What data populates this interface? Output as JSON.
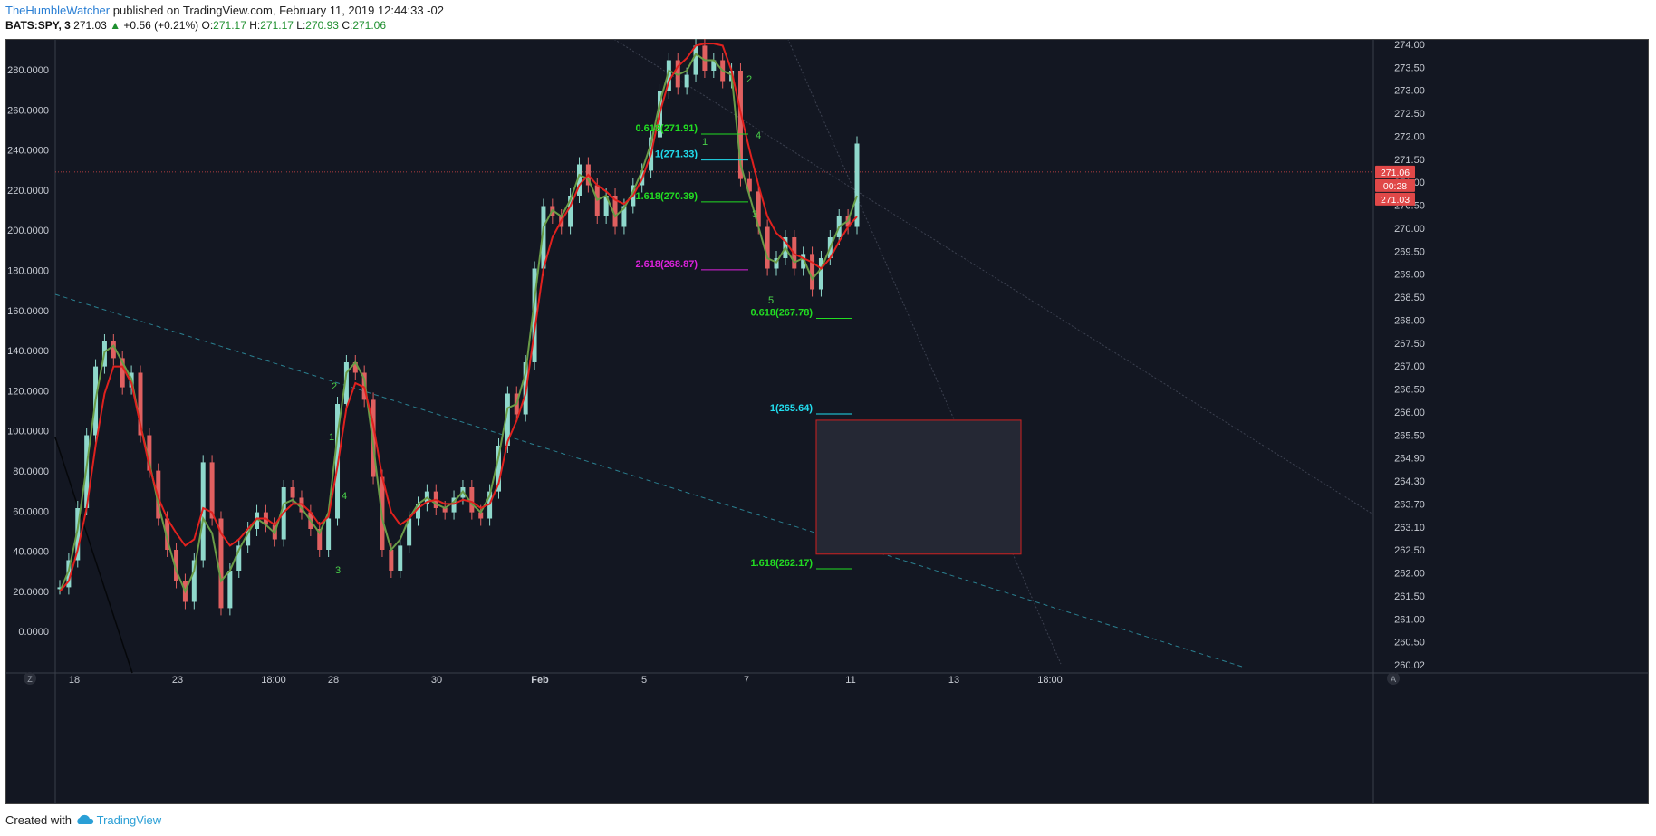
{
  "header": {
    "author": "TheHumbleWatcher",
    "published": "published on TradingView.com, February 11, 2019 12:44:33 -02",
    "symbol": "BATS:SPY, 3",
    "last": "271.03",
    "change": "+0.56 (+0.21%)",
    "o_label": "O:",
    "o_value": "271.17",
    "h_label": "H:",
    "h_value": "271.17",
    "l_label": "L:",
    "l_value": "270.93",
    "c_label": "C:",
    "c_value": "271.06"
  },
  "footer": {
    "created_with": "Created with",
    "brand": "TradingView"
  },
  "colors": {
    "background": "#131722",
    "up_candle": "#8fd8cc",
    "down_candle": "#e06060",
    "ma_fast": "#6a9c47",
    "ma_slow": "#e0211e",
    "fib_green": "#22dd22",
    "fib_cyan": "#22ddee",
    "fib_magenta": "#dd22dd",
    "wave_green": "#4ad04a",
    "price_tag": "#e04848",
    "box_border": "#d02020",
    "dashed_line": "#2a7f8f"
  },
  "chart_data": {
    "type": "line",
    "symbol": "BATS:SPY",
    "interval": "3",
    "x_ticks": [
      "18",
      "23",
      "18:00",
      "28",
      "30",
      "Feb",
      "5",
      "7",
      "11",
      "13",
      "18:00"
    ],
    "left_axis_ticks": [
      "280.0000",
      "260.0000",
      "240.0000",
      "220.0000",
      "200.0000",
      "180.0000",
      "160.0000",
      "140.0000",
      "120.0000",
      "100.0000",
      "80.0000",
      "60.0000",
      "40.0000",
      "20.0000",
      "0.0000"
    ],
    "right_axis_ticks": [
      "274.00",
      "273.50",
      "273.00",
      "272.50",
      "272.00",
      "271.50",
      "271.00",
      "270.50",
      "270.00",
      "269.50",
      "269.00",
      "268.50",
      "268.00",
      "267.50",
      "267.00",
      "266.50",
      "266.00",
      "265.50",
      "264.90",
      "264.30",
      "263.70",
      "263.10",
      "262.50",
      "262.00",
      "261.50",
      "261.00",
      "260.50",
      "260.02"
    ],
    "left_range": [
      0,
      280
    ],
    "right_range": [
      260.02,
      274.0
    ],
    "grid": false,
    "price_tags": [
      "271.06",
      "00:28",
      "271.03"
    ],
    "series": [
      {
        "name": "",
        "values": [
          22,
          35,
          60,
          95,
          128,
          140,
          132,
          118,
          125,
          95,
          78,
          55,
          40,
          25,
          15,
          35,
          82,
          55,
          12,
          30,
          42,
          50,
          58,
          52,
          45,
          70,
          65,
          58,
          50,
          40,
          55,
          110,
          130,
          125,
          112,
          75,
          40,
          30,
          42,
          55,
          62,
          68,
          60,
          58,
          65,
          70,
          58,
          55,
          68,
          90,
          115,
          105,
          130,
          175,
          205,
          200,
          195,
          210,
          225,
          215,
          200,
          210,
          195,
          205,
          215,
          222,
          238,
          260,
          275,
          262,
          268,
          282,
          270,
          275,
          265,
          270,
          218,
          212,
          195,
          175,
          180,
          190,
          175,
          182,
          165,
          180,
          190,
          200,
          195,
          235
        ]
      },
      {
        "name": "",
        "values": [
          20,
          30,
          50,
          80,
          112,
          135,
          138,
          130,
          122,
          100,
          82,
          62,
          45,
          30,
          20,
          30,
          55,
          48,
          25,
          30,
          40,
          48,
          55,
          52,
          48,
          62,
          64,
          60,
          54,
          48,
          58,
          95,
          125,
          130,
          122,
          90,
          55,
          40,
          45,
          55,
          62,
          65,
          62,
          60,
          63,
          68,
          62,
          58,
          66,
          85,
          108,
          110,
          125,
          160,
          195,
          203,
          200,
          208,
          220,
          218,
          208,
          210,
          200,
          204,
          212,
          222,
          235,
          255,
          270,
          268,
          270,
          278,
          275,
          275,
          270,
          268,
          225,
          210,
          195,
          180,
          178,
          185,
          178,
          180,
          170,
          175,
          185,
          195,
          198,
          210
        ]
      },
      {
        "name": "",
        "values": [
          20,
          25,
          40,
          60,
          90,
          115,
          128,
          128,
          120,
          100,
          80,
          65,
          55,
          48,
          42,
          45,
          60,
          58,
          48,
          42,
          45,
          50,
          55,
          55,
          52,
          58,
          62,
          62,
          58,
          52,
          56,
          80,
          108,
          120,
          118,
          100,
          75,
          58,
          52,
          55,
          60,
          63,
          64,
          62,
          62,
          64,
          63,
          60,
          62,
          72,
          92,
          102,
          115,
          145,
          175,
          190,
          198,
          205,
          215,
          220,
          215,
          212,
          208,
          206,
          210,
          218,
          230,
          250,
          265,
          272,
          276,
          282,
          283,
          283,
          282,
          270,
          250,
          232,
          215,
          200,
          192,
          188,
          182,
          180,
          178,
          175,
          180,
          188,
          195,
          200
        ]
      }
    ],
    "fib_levels": [
      {
        "label": "0.618(271.91)",
        "value": 271.91
      },
      {
        "label": "1(271.33)",
        "value": 271.33
      },
      {
        "label": "1.618(270.39)",
        "value": 270.39
      },
      {
        "label": "2.618(268.87)",
        "value": 268.87
      },
      {
        "label": "0.618(267.78)",
        "value": 267.78
      },
      {
        "label": "1(265.64)",
        "value": 265.64
      },
      {
        "label": "1.618(262.17)",
        "value": 262.17
      }
    ],
    "wave_labels": [
      "2",
      "1",
      "4",
      "3",
      "2",
      "1",
      "4",
      "3",
      "5"
    ],
    "target_zone": {
      "top": 265.5,
      "bottom": 262.5
    }
  }
}
